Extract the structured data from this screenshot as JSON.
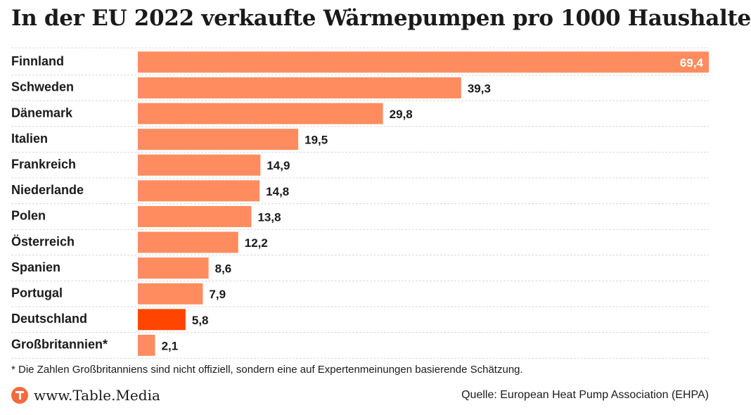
{
  "title": "In der EU 2022 verkaufte Wärmepumpen pro 1000 Haushalte",
  "footnote": "* Die Zahlen Großbritanniens sind nicht offiziell, sondern eine auf Expertenmeinungen basierende Schätzung.",
  "footer": {
    "brand": "www.Table.Media",
    "source": "Quelle: European Heat Pump Association (EHPA)"
  },
  "colors": {
    "bar": "#ff8c5e",
    "highlight": "#ff4500",
    "label_inside": "#ffffff",
    "label_outside": "#1a1a1a",
    "separator": "#d9d9d9"
  },
  "chart_data": {
    "type": "bar",
    "orientation": "horizontal",
    "categories": [
      "Finnland",
      "Schweden",
      "Dänemark",
      "Italien",
      "Frankreich",
      "Niederlande",
      "Polen",
      "Österreich",
      "Spanien",
      "Portugal",
      "Deutschland",
      "Großbritannien*"
    ],
    "values": [
      69.4,
      39.3,
      29.8,
      19.5,
      14.9,
      14.8,
      13.8,
      12.2,
      8.6,
      7.9,
      5.8,
      2.1
    ],
    "value_labels": [
      "69,4",
      "39,3",
      "29,8",
      "19,5",
      "14,9",
      "14,8",
      "13,8",
      "12,2",
      "8,6",
      "7,9",
      "5,8",
      "2,1"
    ],
    "highlight": "Deutschland",
    "xlim": [
      0,
      69.4
    ],
    "grid": false,
    "title": "In der EU 2022 verkaufte Wärmepumpen pro 1000 Haushalte"
  }
}
